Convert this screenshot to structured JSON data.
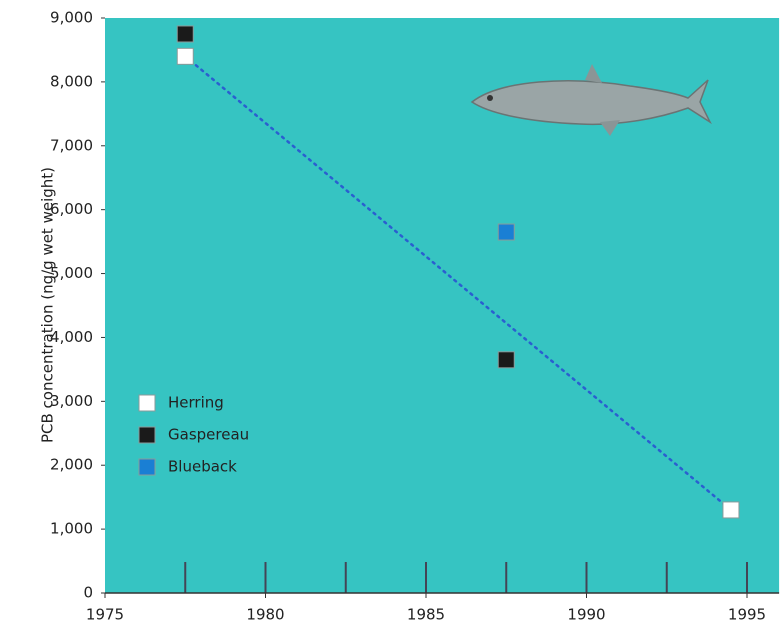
{
  "chart_data": {
    "type": "scatter",
    "y_label": "PCB concentration (ng/g wet weight)",
    "xlim": [
      1975,
      1996
    ],
    "ylim": [
      0,
      9000
    ],
    "xticks": [
      1975,
      1980,
      1985,
      1990,
      1995
    ],
    "x_minor_ticks": [
      1977.5,
      1980,
      1982.5,
      1985,
      1987.5,
      1990,
      1992.5,
      1995
    ],
    "yticks": [
      0,
      {
        "value": 1000,
        "label": "1,000"
      },
      {
        "value": 2000,
        "label": "2,000"
      },
      {
        "value": 3000,
        "label": "3,000"
      },
      {
        "value": 4000,
        "label": "4,000"
      },
      {
        "value": 5000,
        "label": "5,000"
      },
      {
        "value": 6000,
        "label": "6,000"
      },
      {
        "value": 7000,
        "label": "7,000"
      },
      {
        "value": 8000,
        "label": "8,000"
      },
      {
        "value": 9000,
        "label": "9,000"
      }
    ],
    "background": "#36c4c2",
    "legend": "lower left",
    "series": [
      {
        "name": "Herring",
        "color": "#ffffff",
        "x": [
          1977.5,
          1994.5
        ],
        "values": [
          8400,
          1300
        ],
        "line": true,
        "line_color": "#2a5fd0"
      },
      {
        "name": "Gaspereau",
        "color": "#1a1a1a",
        "x": [
          1977.5,
          1987.5
        ],
        "values": [
          8750,
          3650
        ]
      },
      {
        "name": "Blueback",
        "color": "#1a7fd4",
        "x": [
          1987.5
        ],
        "values": [
          5650
        ]
      }
    ]
  }
}
